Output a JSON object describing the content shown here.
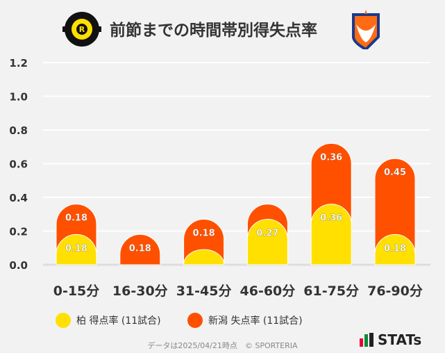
{
  "title": "前節までの時間帯別得失点率",
  "logos": {
    "home": "KASHIWA REYSOL",
    "away": "ALBIREX"
  },
  "chart_data": {
    "type": "bar",
    "stacked": true,
    "title": "前節までの時間帯別得失点率",
    "categories": [
      "0-15分",
      "16-30分",
      "31-45分",
      "46-60分",
      "61-75分",
      "76-90分"
    ],
    "series": [
      {
        "name": "柏 得点率 (11試合)",
        "color": "#ffe000",
        "values": [
          0.18,
          0,
          0.09,
          0.27,
          0.36,
          0.18
        ],
        "labels": [
          "0.18",
          "",
          "",
          "0.27",
          "0.36",
          "0.18"
        ]
      },
      {
        "name": "新潟 失点率 (11試合)",
        "color": "#ff5000",
        "values": [
          0.18,
          0.18,
          0.18,
          0.09,
          0.36,
          0.45
        ],
        "labels": [
          "0.18",
          "0.18",
          "0.18",
          "",
          "0.36",
          "0.45"
        ]
      }
    ],
    "ylim": [
      0,
      1.2
    ],
    "yticks": [
      "0.0",
      "0.2",
      "0.4",
      "0.6",
      "0.8",
      "1.0",
      "1.2"
    ],
    "grid": true,
    "legend": "bottom"
  },
  "footer": "データは2025/04/21時点　© SPORTERIA",
  "brand": "STATs"
}
